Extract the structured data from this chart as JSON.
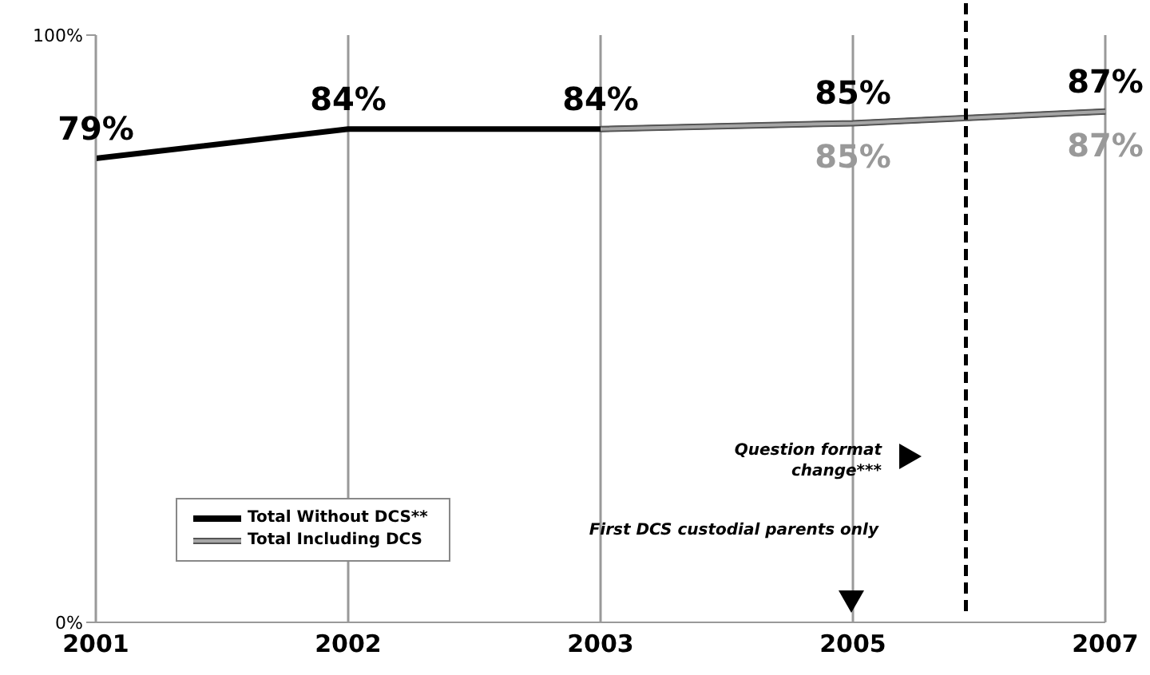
{
  "chart_data": {
    "type": "line",
    "categories": [
      "2001",
      "2002",
      "2003",
      "2005",
      "2007"
    ],
    "series": [
      {
        "name": "Total Without DCS**",
        "color": "#000000",
        "values": [
          79,
          84,
          84,
          85,
          87
        ],
        "value_labels": [
          "79%",
          "84%",
          "84%",
          "85%",
          "87%"
        ]
      },
      {
        "name": "Total Including DCS",
        "color": "#a6a6a6",
        "values": [
          null,
          null,
          84,
          85,
          87
        ],
        "value_labels": [
          null,
          null,
          null,
          "85%",
          "87%"
        ]
      }
    ],
    "ylim": [
      0,
      100
    ],
    "yticks": [
      {
        "value": 0,
        "label": "0%"
      },
      {
        "value": 100,
        "label": "100%"
      }
    ],
    "grid": "x",
    "legend": "bottom left",
    "marker": "none",
    "line_style": "solid",
    "annotations": [
      "Question format change***",
      "First DCS custodial parents only"
    ]
  }
}
